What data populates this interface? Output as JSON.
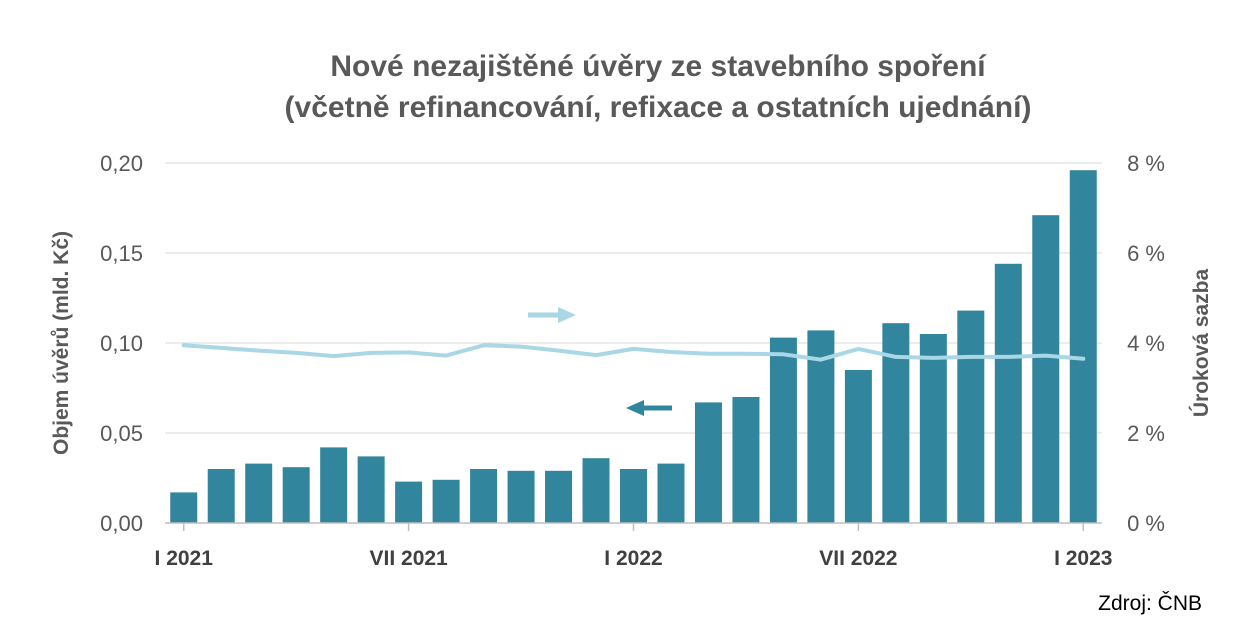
{
  "chart_data": {
    "type": "bar",
    "title_lines": [
      "Nové nezajištěné úvěry ze stavebního spoření",
      "(včetně refinancování, refixace a ostatních ujednání)"
    ],
    "y_left_label": "Objem úvěrů (mld. Kč)",
    "y_right_label": "Úroková sazba",
    "y_left_ticks": [
      "0,00",
      "0,05",
      "0,10",
      "0,15",
      "0,20"
    ],
    "y_right_ticks": [
      "0 %",
      "2 %",
      "4 %",
      "6 %",
      "8 %"
    ],
    "ylim_left": [
      0,
      0.2
    ],
    "ylim_right": [
      0,
      8
    ],
    "x_tick_labels": [
      {
        "index": 0,
        "label": "I 2021"
      },
      {
        "index": 6,
        "label": "VII 2021"
      },
      {
        "index": 12,
        "label": "I 2022"
      },
      {
        "index": 18,
        "label": "VII 2022"
      },
      {
        "index": 24,
        "label": "I 2023"
      }
    ],
    "source": "Zdroj: ČNB",
    "grid": "horizontal",
    "series": [
      {
        "type": "bar",
        "axis": "left",
        "color": "#31859c",
        "values": [
          0.017,
          0.03,
          0.033,
          0.031,
          0.042,
          0.037,
          0.023,
          0.024,
          0.03,
          0.029,
          0.029,
          0.036,
          0.03,
          0.033,
          0.067,
          0.07,
          0.103,
          0.107,
          0.085,
          0.111,
          0.105,
          0.118,
          0.144,
          0.171,
          0.196
        ]
      },
      {
        "type": "line",
        "axis": "right",
        "color": "#a9d7e6",
        "values": [
          3.95,
          3.89,
          3.83,
          3.78,
          3.71,
          3.78,
          3.79,
          3.72,
          3.95,
          3.92,
          3.83,
          3.73,
          3.87,
          3.8,
          3.76,
          3.76,
          3.75,
          3.63,
          3.87,
          3.69,
          3.67,
          3.69,
          3.69,
          3.72,
          3.65
        ]
      }
    ],
    "arrows": [
      {
        "direction": "right",
        "color": "#a9d7e6",
        "points_to": "right axis"
      },
      {
        "direction": "left",
        "color": "#31859c",
        "points_to": "left axis"
      }
    ]
  }
}
